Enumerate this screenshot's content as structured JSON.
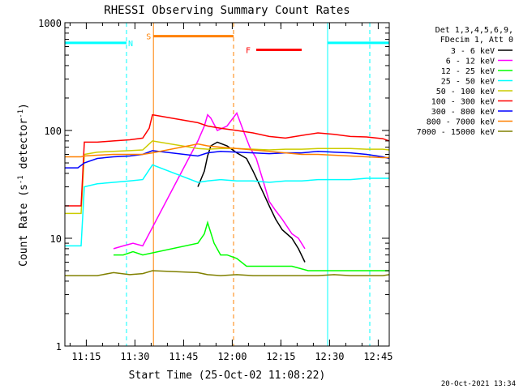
{
  "chart_data": {
    "type": "line",
    "title": "RHESSI Observing Summary Count Rates",
    "xlabel": "Start Time (25-Oct-02 11:08:22)",
    "ylabel": "Count Rate (s⁻¹ detector⁻¹)",
    "ylabel_parts": [
      "Count Rate (s",
      "-1",
      " detector",
      "-1",
      ")"
    ],
    "yscale": "log",
    "ylim": [
      1,
      1000
    ],
    "xlim_minutes": [
      0,
      100
    ],
    "x_ticks": [
      "11:15",
      "11:30",
      "11:45",
      "12:00",
      "12:15",
      "12:30",
      "12:45"
    ],
    "x_tick_minutes": [
      6.6,
      21.6,
      36.6,
      51.6,
      66.6,
      81.6,
      96.6
    ],
    "y_ticks": [
      "1",
      "10",
      "100",
      "1000"
    ],
    "y_tick_values": [
      1,
      10,
      100,
      1000
    ],
    "timestamp": "20-Oct-2021 13:34",
    "legend_header": [
      "Det 1,3,4,5,6,9,",
      "FDecim 1, Att 0"
    ],
    "series": [
      {
        "name": "3 - 6 keV",
        "color": "#000000",
        "x": [
          41,
          43,
          44,
          45,
          47,
          50,
          53,
          56,
          58,
          61,
          63,
          65,
          67,
          70,
          72,
          74
        ],
        "values": [
          30,
          42,
          58,
          72,
          78,
          72,
          62,
          55,
          42,
          27,
          20,
          15,
          12,
          10,
          8,
          6
        ]
      },
      {
        "name": "6 - 12 keV",
        "color": "#ff00ff",
        "x": [
          15,
          18,
          21,
          24,
          41,
          43,
          44,
          45,
          47,
          50,
          53,
          55,
          57,
          59,
          61,
          63,
          65,
          67,
          70,
          72,
          74
        ],
        "values": [
          8,
          8.5,
          9,
          8.5,
          80,
          110,
          140,
          130,
          100,
          110,
          145,
          100,
          70,
          55,
          35,
          22,
          18,
          15,
          11,
          10,
          8
        ]
      },
      {
        "name": "12 - 25 keV",
        "color": "#00ff00",
        "x": [
          15,
          18,
          21,
          24,
          41,
          43,
          44,
          46,
          48,
          50,
          53,
          56,
          60,
          65,
          70,
          75,
          80,
          85,
          90,
          95,
          100
        ],
        "values": [
          7,
          7,
          7.5,
          7,
          9,
          11,
          14,
          9,
          7,
          7,
          6.5,
          5.5,
          5.5,
          5.5,
          5.5,
          5,
          5,
          5,
          5,
          5,
          5
        ]
      },
      {
        "name": "25 - 50 keV",
        "color": "#00ffff",
        "x": [
          0,
          5,
          6,
          10,
          15,
          20,
          24,
          27,
          41,
          44,
          48,
          53,
          58,
          63,
          68,
          73,
          78,
          83,
          88,
          93,
          98,
          100
        ],
        "values": [
          8.5,
          8.5,
          30,
          32,
          33,
          34,
          35,
          48,
          33,
          34,
          35,
          34,
          34,
          33,
          34,
          34,
          35,
          35,
          35,
          36,
          36,
          36
        ]
      },
      {
        "name": "50 - 100 keV",
        "color": "#cccc00",
        "x": [
          0,
          5,
          6,
          10,
          15,
          20,
          24,
          27,
          41,
          44,
          48,
          53,
          58,
          63,
          68,
          73,
          78,
          83,
          88,
          93,
          98,
          100
        ],
        "values": [
          17,
          17,
          60,
          63,
          64,
          65,
          66,
          80,
          68,
          67,
          68,
          68,
          67,
          66,
          67,
          67,
          68,
          68,
          68,
          67,
          67,
          66
        ]
      },
      {
        "name": "100 - 300 keV",
        "color": "#ff0000",
        "x": [
          0,
          5,
          6,
          10,
          15,
          20,
          24,
          26,
          27,
          41,
          44,
          48,
          53,
          58,
          63,
          68,
          73,
          78,
          83,
          88,
          93,
          98,
          100
        ],
        "values": [
          20,
          20,
          78,
          78,
          80,
          82,
          85,
          105,
          140,
          118,
          110,
          105,
          100,
          95,
          88,
          85,
          90,
          95,
          92,
          88,
          87,
          84,
          80
        ]
      },
      {
        "name": "300 - 800 keV",
        "color": "#0000ff",
        "x": [
          0,
          4,
          6,
          10,
          15,
          20,
          24,
          27,
          41,
          44,
          48,
          53,
          58,
          63,
          68,
          73,
          78,
          83,
          88,
          93,
          98,
          100
        ],
        "values": [
          45,
          45,
          50,
          55,
          57,
          58,
          60,
          65,
          58,
          62,
          64,
          63,
          62,
          61,
          62,
          62,
          64,
          63,
          62,
          60,
          57,
          55
        ]
      },
      {
        "name": "800 - 7000 keV",
        "color": "#ff8000",
        "x": [
          0,
          5,
          6,
          10,
          15,
          20,
          24,
          27,
          41,
          44,
          48,
          53,
          58,
          63,
          68,
          73,
          78,
          83,
          88,
          93,
          98,
          100
        ],
        "values": [
          57,
          57,
          58,
          59,
          60,
          60,
          60,
          62,
          75,
          72,
          70,
          68,
          66,
          64,
          62,
          60,
          60,
          59,
          58,
          57,
          56,
          56
        ]
      },
      {
        "name": "7000 - 15000 keV",
        "color": "#808000",
        "x": [
          0,
          5,
          10,
          15,
          20,
          24,
          27,
          41,
          44,
          48,
          53,
          58,
          63,
          68,
          73,
          78,
          83,
          88,
          93,
          98,
          100
        ],
        "values": [
          4.5,
          4.5,
          4.5,
          4.8,
          4.6,
          4.7,
          5,
          4.8,
          4.6,
          4.5,
          4.6,
          4.5,
          4.5,
          4.5,
          4.5,
          4.5,
          4.6,
          4.5,
          4.5,
          4.5,
          4.6
        ]
      }
    ],
    "event_markers": [
      {
        "label": "N",
        "color": "#00ffff",
        "y": 650,
        "segments": [
          [
            0,
            19
          ]
        ],
        "dashed_at": [
          19
        ],
        "solid_at": []
      },
      {
        "label": "S",
        "color": "#ff8000",
        "y": 750,
        "segments": [
          [
            27.3,
            52
          ]
        ],
        "dashed_at": [
          52
        ],
        "solid_at": [
          27.3
        ]
      },
      {
        "label": "F",
        "color": "#ff0000",
        "y": 560,
        "segments": [
          [
            59,
            73
          ]
        ],
        "dashed_at": [],
        "solid_at": []
      },
      {
        "label": "",
        "color": "#00ffff",
        "y": 650,
        "segments": [
          [
            81,
            94
          ],
          [
            94,
            100
          ]
        ],
        "dashed_at": [
          94
        ],
        "solid_at": [
          81
        ]
      }
    ]
  }
}
